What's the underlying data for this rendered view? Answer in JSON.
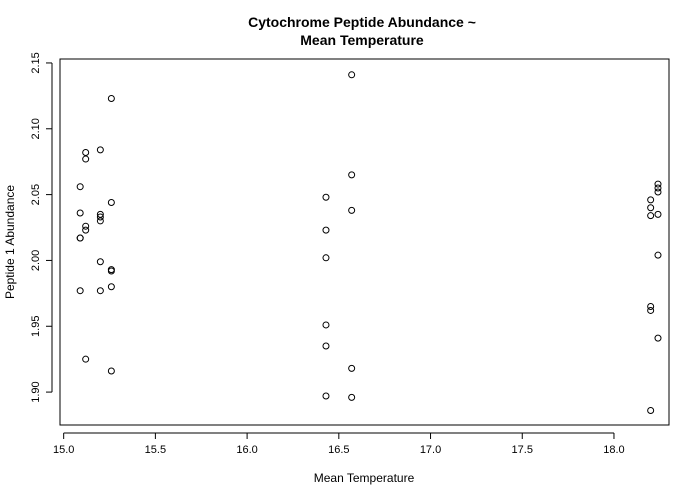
{
  "chart_data": {
    "type": "scatter",
    "title_lines": [
      "Cytochrome Peptide Abundance ~",
      "Mean Temperature"
    ],
    "xlabel": "Mean Temperature",
    "ylabel": "Peptide 1 Abundance",
    "xlim": [
      14.98,
      18.3
    ],
    "ylim": [
      1.875,
      2.153
    ],
    "x_ticks": [
      15.0,
      15.5,
      16.0,
      16.5,
      17.0,
      17.5,
      18.0
    ],
    "x_tick_labels": [
      "15.0",
      "15.5",
      "16.0",
      "16.5",
      "17.0",
      "17.5",
      "18.0"
    ],
    "y_ticks": [
      1.9,
      1.95,
      2.0,
      2.05,
      2.1,
      2.15
    ],
    "y_tick_labels": [
      "1.90",
      "1.95",
      "2.00",
      "2.05",
      "2.10",
      "2.15"
    ],
    "grid": false,
    "legend": "none",
    "marker": "open-circle",
    "points": [
      {
        "x": 15.09,
        "y": 2.056
      },
      {
        "x": 15.09,
        "y": 2.036
      },
      {
        "x": 15.09,
        "y": 2.017
      },
      {
        "x": 15.09,
        "y": 2.017
      },
      {
        "x": 15.09,
        "y": 1.977
      },
      {
        "x": 15.12,
        "y": 2.082
      },
      {
        "x": 15.12,
        "y": 2.077
      },
      {
        "x": 15.12,
        "y": 2.026
      },
      {
        "x": 15.12,
        "y": 2.023
      },
      {
        "x": 15.12,
        "y": 1.925
      },
      {
        "x": 15.2,
        "y": 2.084
      },
      {
        "x": 15.2,
        "y": 2.035
      },
      {
        "x": 15.2,
        "y": 2.033
      },
      {
        "x": 15.2,
        "y": 2.03
      },
      {
        "x": 15.2,
        "y": 1.999
      },
      {
        "x": 15.2,
        "y": 1.977
      },
      {
        "x": 15.26,
        "y": 2.123
      },
      {
        "x": 15.26,
        "y": 2.044
      },
      {
        "x": 15.26,
        "y": 1.993
      },
      {
        "x": 15.26,
        "y": 1.992
      },
      {
        "x": 15.26,
        "y": 1.98
      },
      {
        "x": 15.26,
        "y": 1.916
      },
      {
        "x": 16.43,
        "y": 2.048
      },
      {
        "x": 16.43,
        "y": 2.023
      },
      {
        "x": 16.43,
        "y": 2.002
      },
      {
        "x": 16.43,
        "y": 1.951
      },
      {
        "x": 16.43,
        "y": 1.935
      },
      {
        "x": 16.43,
        "y": 1.897
      },
      {
        "x": 16.57,
        "y": 2.141
      },
      {
        "x": 16.57,
        "y": 2.065
      },
      {
        "x": 16.57,
        "y": 2.038
      },
      {
        "x": 16.57,
        "y": 1.918
      },
      {
        "x": 16.57,
        "y": 1.896
      },
      {
        "x": 18.2,
        "y": 2.046
      },
      {
        "x": 18.2,
        "y": 2.04
      },
      {
        "x": 18.2,
        "y": 2.034
      },
      {
        "x": 18.2,
        "y": 1.965
      },
      {
        "x": 18.2,
        "y": 1.962
      },
      {
        "x": 18.2,
        "y": 1.886
      },
      {
        "x": 18.24,
        "y": 2.058
      },
      {
        "x": 18.24,
        "y": 2.055
      },
      {
        "x": 18.24,
        "y": 2.052
      },
      {
        "x": 18.24,
        "y": 2.035
      },
      {
        "x": 18.24,
        "y": 2.004
      },
      {
        "x": 18.24,
        "y": 1.941
      }
    ]
  }
}
